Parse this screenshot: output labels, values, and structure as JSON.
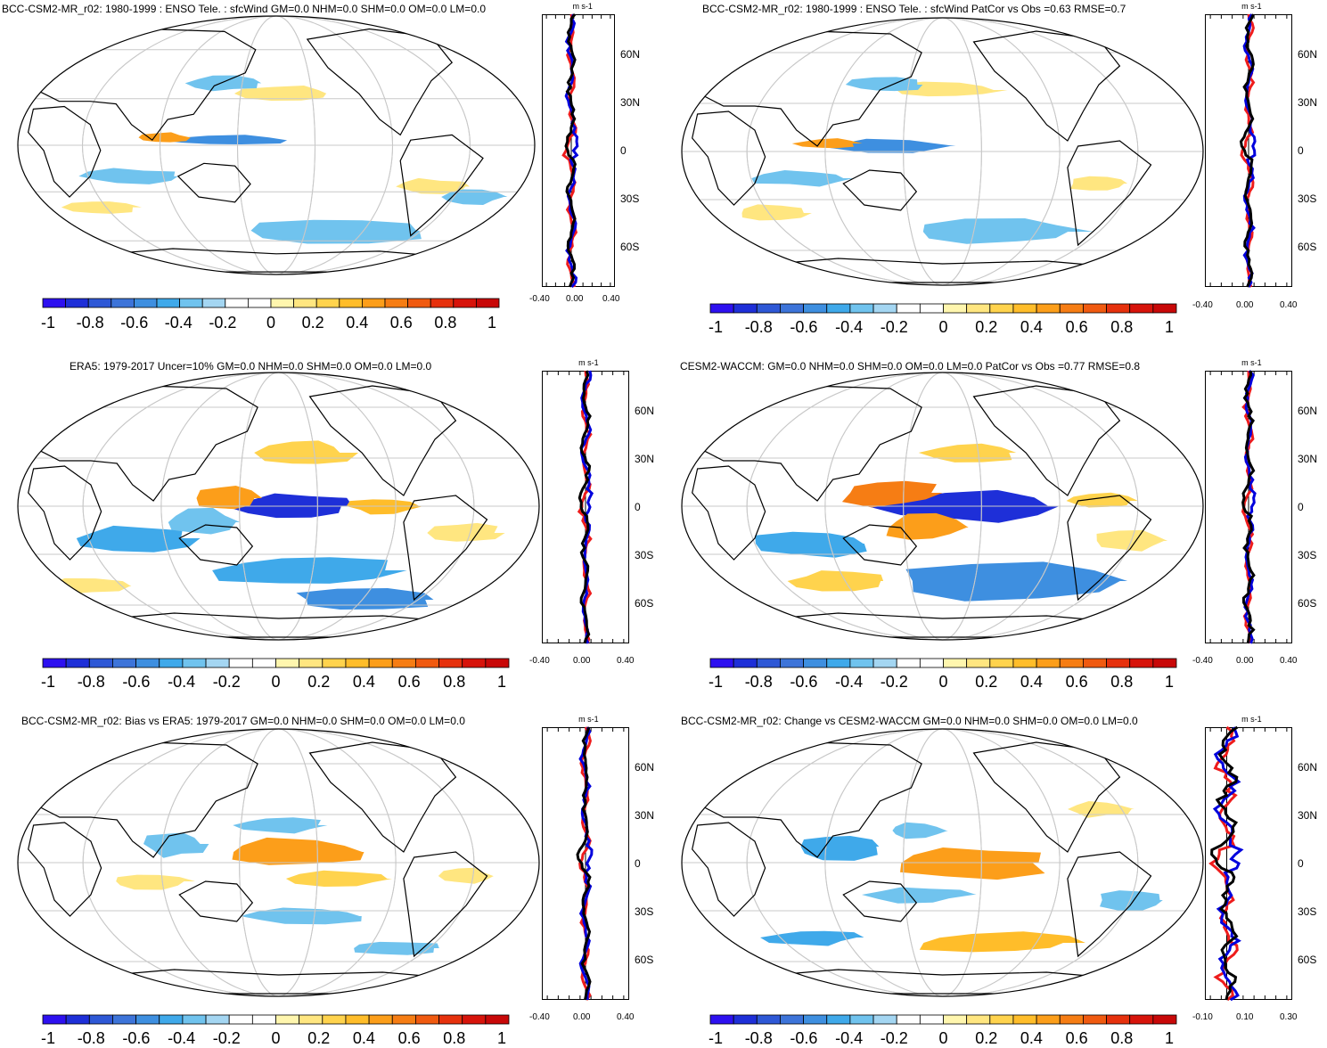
{
  "panels": [
    {
      "title": "BCC-CSM2-MR_r02: 1980-1999 : ENSO Tele. : sfcWind GM=0.0 NHM=0.0 SHM=0.0 OM=0.0 LM=0.0"
    },
    {
      "title": "BCC-CSM2-MR_r02: 1980-1999 : ENSO Tele. : sfcWind PatCor vs Obs =0.63 RMSE=0.7"
    },
    {
      "title": "ERA5: 1979-2017 Uncer=10% GM=0.0 NHM=0.0 SHM=0.0 OM=0.0 LM=0.0"
    },
    {
      "title": "CESM2-WACCM: GM=0.0 NHM=0.0 SHM=0.0 OM=0.0 LM=0.0 PatCor vs Obs =0.77 RMSE=0.8"
    },
    {
      "title": "BCC-CSM2-MR_r02: Bias vs ERA5: 1979-2017 GM=0.0 NHM=0.0 SHM=0.0 OM=0.0 LM=0.0"
    },
    {
      "title": "BCC-CSM2-MR_r02: Change vs CESM2-WACCM GM=0.0 NHM=0.0 SHM=0.0 OM=0.0 LM=0.0"
    }
  ],
  "units": "m s-1",
  "lat_labels": [
    "60N",
    "30N",
    "0",
    "30S",
    "60S"
  ],
  "lat_labels_cut": [
    "60N",
    "30N",
    "0",
    "30S",
    "60S"
  ],
  "profile_x_ticks": [
    "-0.40",
    "0.00",
    "0.40"
  ],
  "profile_x_ticks_change": [
    "-0.10",
    "0.10",
    "0.30"
  ],
  "colorbar_labels": [
    "-1",
    "-0.8",
    "-0.6",
    "-0.4",
    "-0.2",
    "0",
    "0.2",
    "0.4",
    "0.6",
    "0.8",
    "1"
  ],
  "colorbar_colors": [
    "#2d10f0",
    "#1e2fd8",
    "#2e58d6",
    "#3d74d9",
    "#3e8fe0",
    "#3fa9ea",
    "#70c3ee",
    "#a4d6f2",
    "#ffffff",
    "#ffffff",
    "#fff6ae",
    "#ffe680",
    "#ffd34d",
    "#ffbd2a",
    "#fc9e1a",
    "#f67d14",
    "#f05a10",
    "#e6310d",
    "#d7140b",
    "#c80808"
  ],
  "colors": {
    "blue_line": "#0000dd",
    "red_line": "#ee1c1c",
    "black_line": "#000000",
    "neg_fill": "#7ec5ee",
    "pos_fill": "#fff0a0"
  }
}
